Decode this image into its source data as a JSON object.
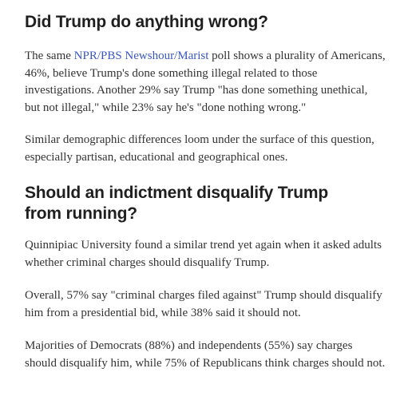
{
  "sections": [
    {
      "heading": "Did Trump do anything wrong?",
      "paragraphs": {
        "p1_before_link": "The same ",
        "p1_link": "NPR/PBS Newshour/Marist",
        "p1_after_link": " poll shows a plurality of Americans, 46%, believe Trump's done something illegal related to those investigations. Another 29% say Trump \"has done something unethical, but not illegal,\" while 23% say he's \"done nothing wrong.\"",
        "p2": "Similar demographic differences loom under the surface of this question, especially partisan, educational and geographical ones."
      }
    },
    {
      "heading": "Should an indictment disqualify Trump from running?",
      "paragraphs": {
        "p3": "Quinnipiac University found a similar trend yet again when it asked adults whether criminal charges should disqualify Trump.",
        "p4": "Overall, 57% say \"criminal charges filed against\" Trump should disqualify him from a presidential bid, while 38% said it should not.",
        "p5": "Majorities of Democrats (88%) and independents (55%) say charges should disqualify him, while 75% of Republicans think charges should not."
      }
    }
  ],
  "colors": {
    "link": "#3a57c4",
    "heading": "#1f1f1f",
    "body_text": "#333333"
  }
}
